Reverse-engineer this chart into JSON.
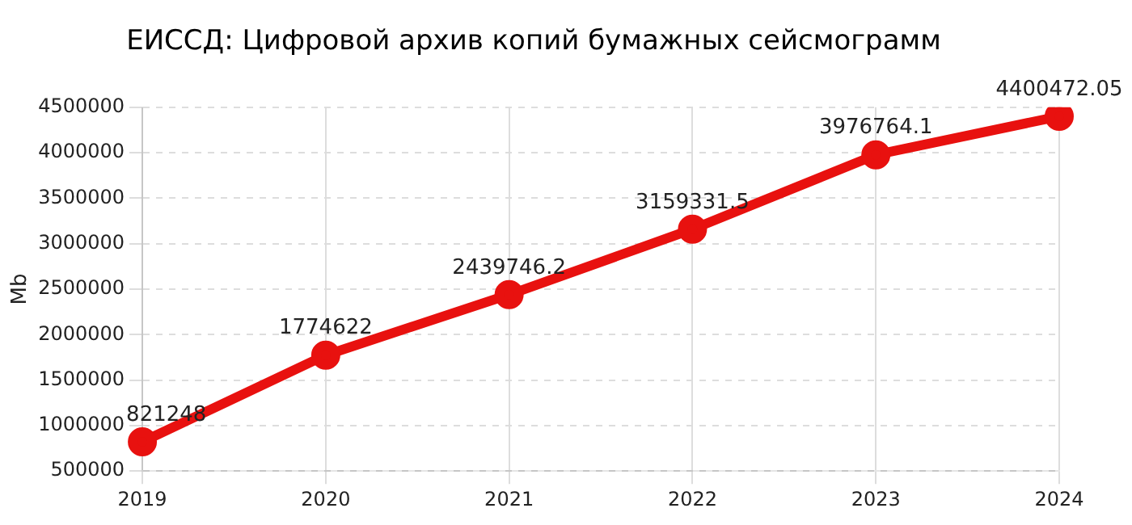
{
  "chart_data": {
    "type": "line",
    "title": "ЕИССД: Цифровой архив копий бумажных сейсмограмм",
    "ylabel": "Mb",
    "categories": [
      "2019",
      "2020",
      "2021",
      "2022",
      "2023",
      "2024"
    ],
    "series": [
      {
        "color": "#e8110f",
        "values": [
          821248,
          1774622,
          2439746.2,
          3159331.5,
          3976764.1,
          4400472.05
        ]
      }
    ],
    "ylim": [
      500000,
      4500000
    ],
    "yticks": [
      500000,
      1000000,
      1500000,
      2000000,
      2500000,
      3000000,
      3500000,
      4000000,
      4500000
    ],
    "grid": true,
    "marker": "circle",
    "line_style": "solid",
    "data_labels": true,
    "legend": false
  }
}
